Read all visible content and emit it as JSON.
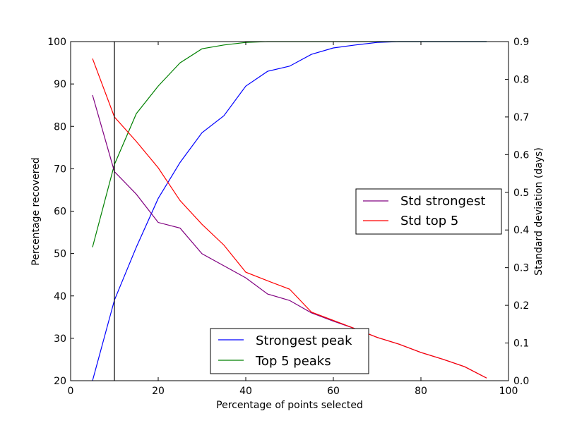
{
  "chart_data": {
    "type": "line",
    "xlabel": "Percentage of points selected",
    "ylabel": "Percentage recovered",
    "y2label": "Standard deviation (days)",
    "xlim": [
      0,
      100
    ],
    "ylim": [
      20,
      100
    ],
    "y2lim": [
      0.0,
      0.9
    ],
    "x_ticks": [
      "0",
      "20",
      "40",
      "60",
      "80",
      "100"
    ],
    "y_ticks": [
      "20",
      "30",
      "40",
      "50",
      "60",
      "70",
      "80",
      "90",
      "100"
    ],
    "y2_ticks": [
      "0.0",
      "0.1",
      "0.2",
      "0.3",
      "0.4",
      "0.5",
      "0.6",
      "0.7",
      "0.8",
      "0.9"
    ],
    "vline_x": 10,
    "x": [
      5,
      10,
      15,
      20,
      25,
      30,
      35,
      40,
      45,
      50,
      55,
      60,
      65,
      70,
      75,
      80,
      85,
      90,
      95
    ],
    "series": [
      {
        "name": "Strongest peak",
        "axis": "left",
        "color": "#0000ff",
        "values": [
          20,
          39,
          51.5,
          63,
          71.5,
          78.5,
          82.5,
          89.5,
          93,
          94.2,
          97,
          98.5,
          99.2,
          99.8,
          100,
          100,
          100,
          100,
          100
        ]
      },
      {
        "name": "Top 5 peaks",
        "axis": "left",
        "color": "#008000",
        "values": [
          51.5,
          71,
          83,
          89.5,
          95,
          98.3,
          99.2,
          99.8,
          100,
          100,
          100,
          100,
          100,
          100,
          100,
          100,
          100,
          100,
          100
        ]
      },
      {
        "name": "Std strongest",
        "axis": "right",
        "color": "#800080",
        "values": [
          0.758,
          0.555,
          0.495,
          0.42,
          0.405,
          0.337,
          0.305,
          0.273,
          0.23,
          0.213,
          0.18,
          0.158,
          0.138,
          0.115,
          0.097,
          0.075,
          0.057,
          0.037,
          0.007
        ]
      },
      {
        "name": "Std top 5",
        "axis": "right",
        "color": "#ff0000",
        "values": [
          0.855,
          0.7,
          0.635,
          0.565,
          0.478,
          0.415,
          0.36,
          0.288,
          0.265,
          0.243,
          0.182,
          0.16,
          0.138,
          0.115,
          0.097,
          0.075,
          0.057,
          0.037,
          0.007
        ]
      }
    ],
    "legend_left": {
      "placement": "lower-center",
      "entries": [
        "Strongest peak",
        "Top 5 peaks"
      ]
    },
    "legend_right": {
      "placement": "center-right",
      "entries": [
        "Std strongest",
        "Std top 5"
      ]
    }
  }
}
